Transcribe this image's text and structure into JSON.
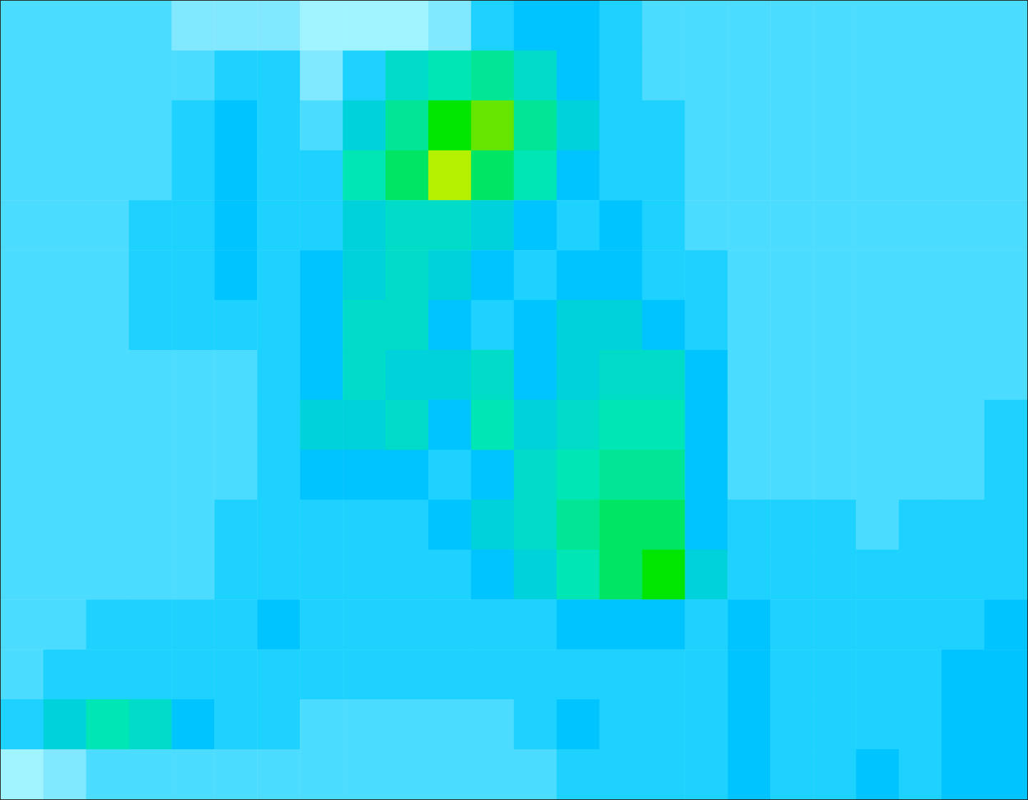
{
  "chart_data": {
    "type": "heatmap",
    "tick_labels": false,
    "clim": [
      0,
      13
    ],
    "levels": [
      0,
      1,
      2,
      3,
      4,
      5,
      6,
      7,
      8,
      9,
      10,
      11,
      12,
      13
    ],
    "colors": [
      "#a0f4ff",
      "#82e8ff",
      "#4cdcff",
      "#1ed2ff",
      "#00c4ff",
      "#00d2dc",
      "#00dcc8",
      "#00e6b4",
      "#00e696",
      "#00e664",
      "#00e600",
      "#64e600",
      "#b4f000"
    ],
    "cells": [
      [
        2,
        2,
        2,
        2,
        1,
        1,
        1,
        0,
        0,
        0,
        1,
        3,
        4,
        4,
        3,
        2,
        2,
        2,
        2,
        2,
        2,
        2,
        2,
        2
      ],
      [
        2,
        2,
        2,
        2,
        2,
        3,
        3,
        1,
        3,
        6,
        7,
        8,
        6,
        4,
        3,
        2,
        2,
        2,
        2,
        2,
        2,
        2,
        2,
        2
      ],
      [
        2,
        2,
        2,
        2,
        3,
        4,
        3,
        2,
        5,
        8,
        10,
        11,
        8,
        5,
        3,
        3,
        2,
        2,
        2,
        2,
        2,
        2,
        2,
        2
      ],
      [
        2,
        2,
        2,
        2,
        3,
        4,
        3,
        3,
        7,
        9,
        12,
        9,
        7,
        4,
        3,
        3,
        2,
        2,
        2,
        2,
        2,
        2,
        2,
        2
      ],
      [
        2,
        2,
        2,
        3,
        3,
        4,
        3,
        3,
        5,
        6,
        6,
        5,
        4,
        3,
        4,
        3,
        2,
        2,
        2,
        2,
        2,
        2,
        2,
        2
      ],
      [
        2,
        2,
        2,
        3,
        3,
        4,
        3,
        4,
        5,
        6,
        5,
        4,
        3,
        4,
        4,
        3,
        3,
        2,
        2,
        2,
        2,
        2,
        2,
        2
      ],
      [
        2,
        2,
        2,
        3,
        3,
        3,
        3,
        4,
        6,
        6,
        4,
        3,
        4,
        5,
        5,
        4,
        3,
        2,
        2,
        2,
        2,
        2,
        2,
        2
      ],
      [
        2,
        2,
        2,
        2,
        2,
        2,
        3,
        4,
        6,
        5,
        5,
        6,
        4,
        5,
        6,
        6,
        4,
        2,
        2,
        2,
        2,
        2,
        2,
        2
      ],
      [
        2,
        2,
        2,
        2,
        2,
        2,
        3,
        5,
        5,
        6,
        4,
        7,
        5,
        6,
        7,
        7,
        4,
        2,
        2,
        2,
        2,
        2,
        2,
        3
      ],
      [
        2,
        2,
        2,
        2,
        2,
        2,
        3,
        4,
        4,
        4,
        3,
        4,
        6,
        7,
        8,
        8,
        4,
        2,
        2,
        2,
        2,
        2,
        2,
        3
      ],
      [
        2,
        2,
        2,
        2,
        2,
        3,
        3,
        3,
        3,
        3,
        4,
        5,
        6,
        8,
        9,
        9,
        4,
        3,
        3,
        3,
        2,
        3,
        3,
        3
      ],
      [
        2,
        2,
        2,
        2,
        2,
        3,
        3,
        3,
        3,
        3,
        3,
        4,
        5,
        7,
        9,
        10,
        5,
        3,
        3,
        3,
        3,
        3,
        3,
        3
      ],
      [
        2,
        2,
        3,
        3,
        3,
        3,
        4,
        3,
        3,
        3,
        3,
        3,
        3,
        4,
        4,
        4,
        3,
        4,
        3,
        3,
        3,
        3,
        3,
        4
      ],
      [
        2,
        3,
        3,
        3,
        3,
        3,
        3,
        3,
        3,
        3,
        3,
        3,
        3,
        3,
        3,
        3,
        3,
        4,
        3,
        3,
        3,
        3,
        4,
        4
      ],
      [
        3,
        5,
        7,
        6,
        4,
        3,
        3,
        2,
        2,
        2,
        2,
        2,
        3,
        4,
        3,
        3,
        3,
        4,
        3,
        3,
        3,
        3,
        4,
        4
      ],
      [
        0,
        1,
        2,
        2,
        2,
        2,
        2,
        2,
        2,
        2,
        2,
        2,
        2,
        3,
        3,
        3,
        3,
        4,
        3,
        3,
        4,
        3,
        4,
        4
      ]
    ]
  }
}
